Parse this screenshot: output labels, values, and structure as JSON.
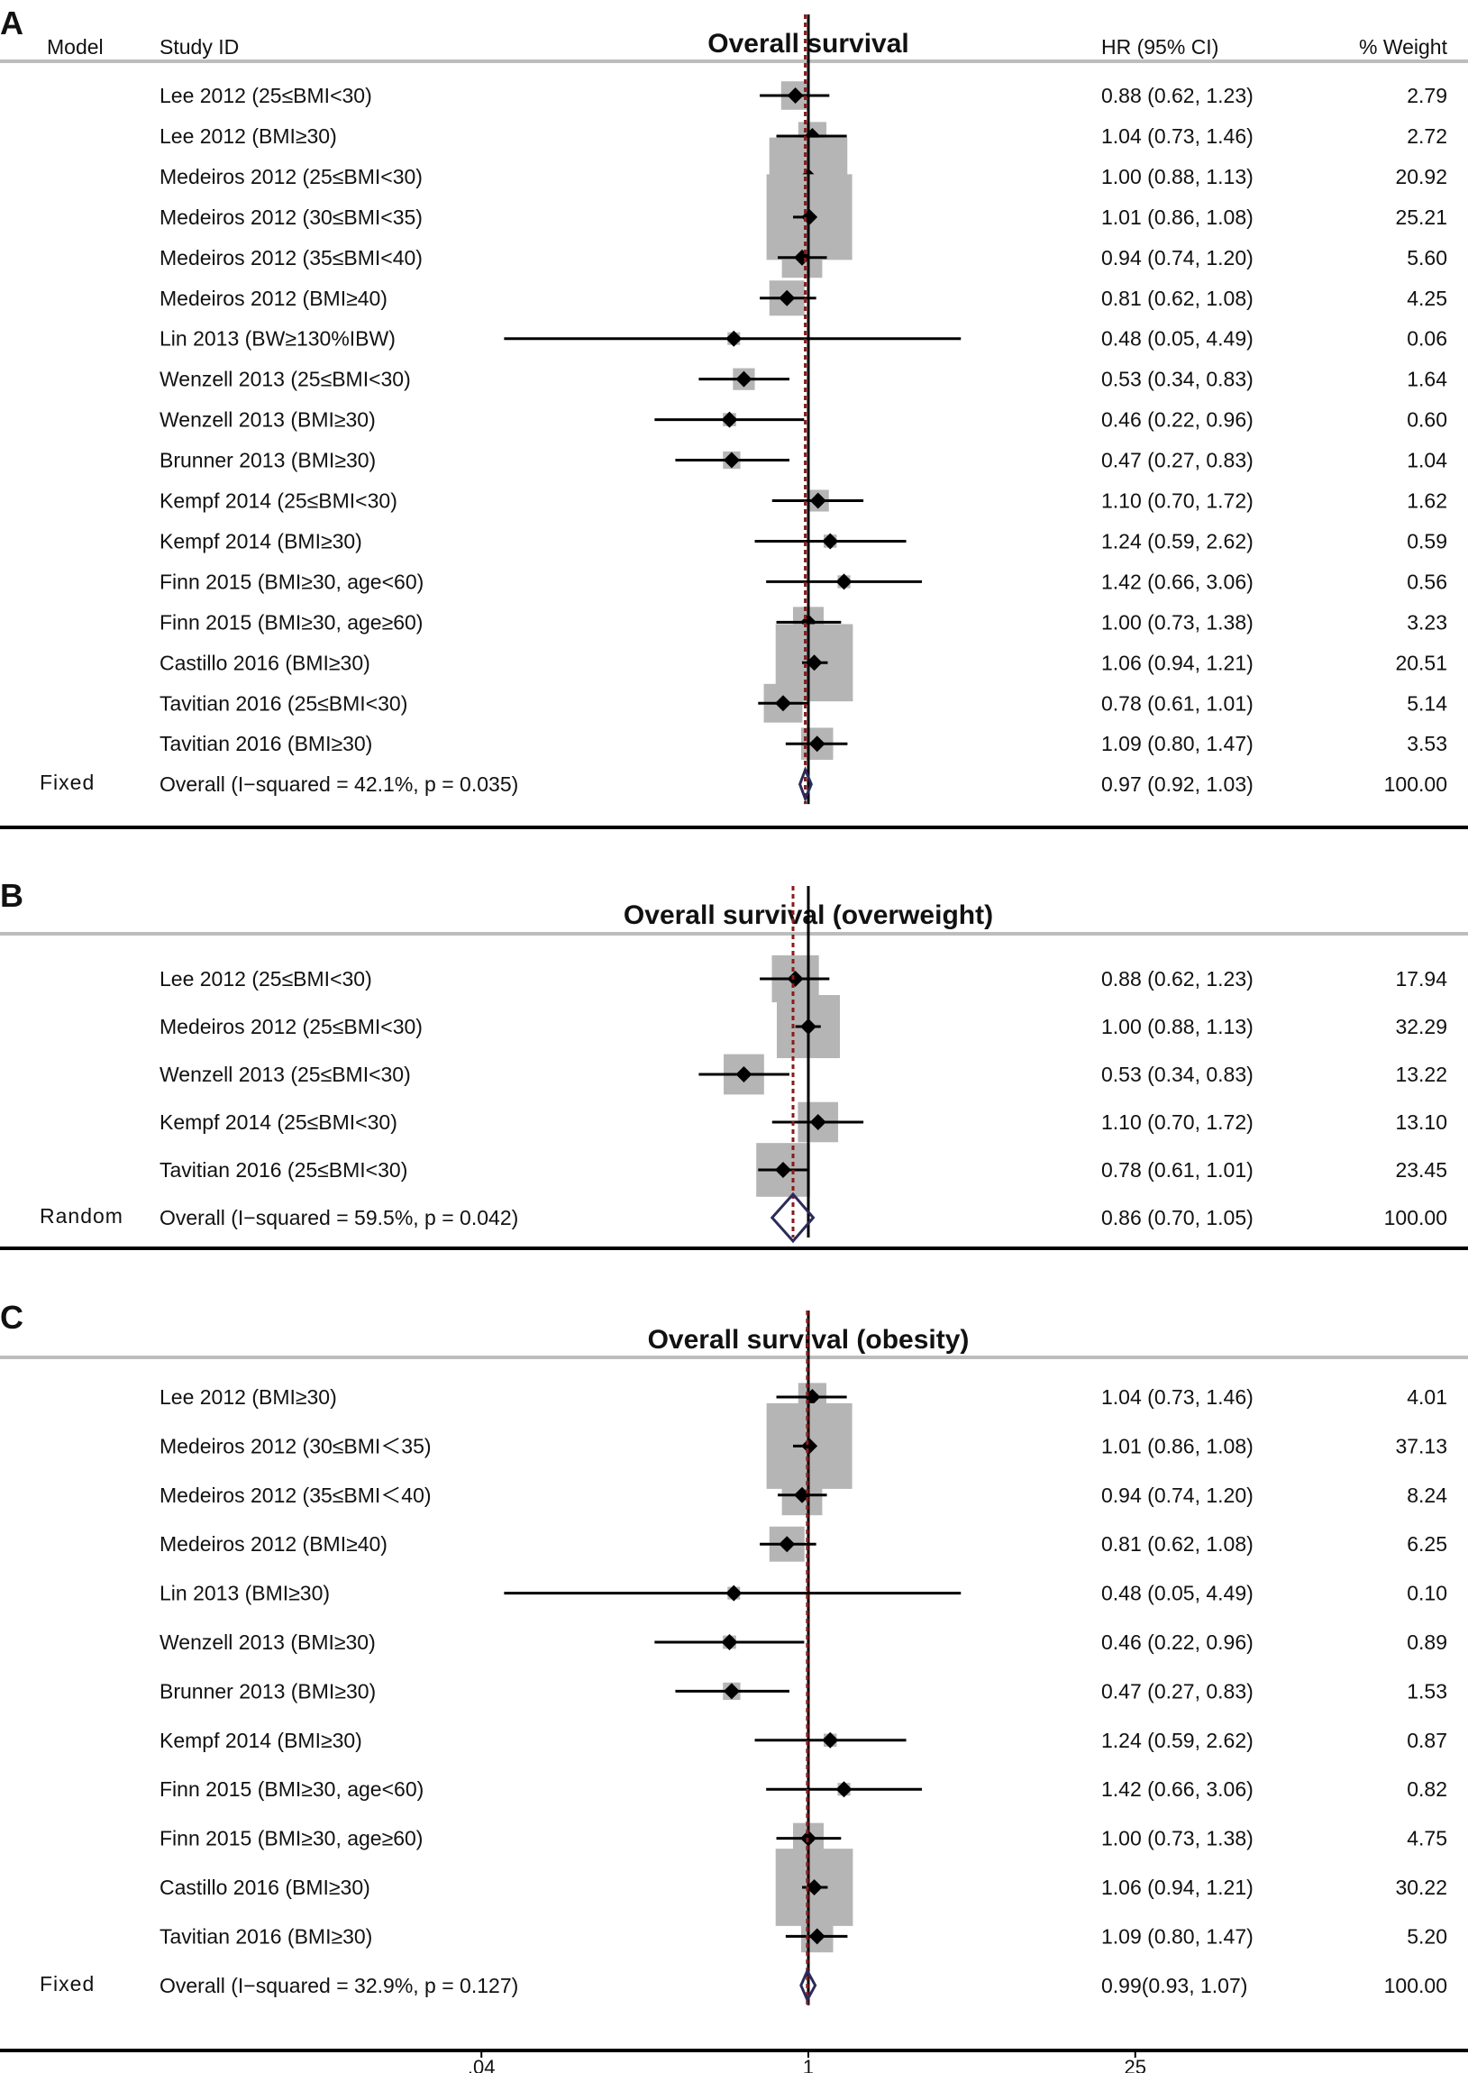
{
  "colors": {
    "box": "#b5b5b5",
    "line": "#000000",
    "ref_line": "#8b1a1a",
    "diamond": "#2b2b5a",
    "rule": "#bdbdbd"
  },
  "headers": {
    "model": "Model",
    "study": "Study ID",
    "hr": "HR (95% CI)",
    "weight": "% Weight"
  },
  "axis": {
    "scale": "log",
    "range": [
      0.02,
      60
    ],
    "ticks": [
      {
        "value": 0.04,
        "label": ".04"
      },
      {
        "value": 1,
        "label": "1"
      },
      {
        "value": 25,
        "label": "25"
      }
    ]
  },
  "chart_data": [
    {
      "type": "forest",
      "letter": "A",
      "title": "Overall survival",
      "model": "Fixed",
      "pooled_line": 0.97,
      "studies": [
        {
          "label": "Lee 2012 (25≤BMI<30)",
          "hr": 0.88,
          "lo": 0.62,
          "hi": 1.23,
          "ci_text": "0.88 (0.62, 1.23)",
          "weight": "2.79"
        },
        {
          "label": "Lee 2012 (BMI≥30)",
          "hr": 1.04,
          "lo": 0.73,
          "hi": 1.46,
          "ci_text": "1.04 (0.73, 1.46)",
          "weight": "2.72"
        },
        {
          "label": "Medeiros 2012 (25≤BMI<30)",
          "hr": 1.0,
          "lo": 0.88,
          "hi": 1.13,
          "ci_text": "1.00 (0.88, 1.13)",
          "weight": "20.92"
        },
        {
          "label": "Medeiros 2012 (30≤BMI<35)",
          "hr": 1.01,
          "lo": 0.86,
          "hi": 1.08,
          "ci_text": "1.01 (0.86, 1.08)",
          "weight": "25.21"
        },
        {
          "label": "Medeiros 2012 (35≤BMI<40)",
          "hr": 0.94,
          "lo": 0.74,
          "hi": 1.2,
          "ci_text": "0.94 (0.74, 1.20)",
          "weight": "5.60"
        },
        {
          "label": "Medeiros 2012 (BMI≥40)",
          "hr": 0.81,
          "lo": 0.62,
          "hi": 1.08,
          "ci_text": "0.81 (0.62, 1.08)",
          "weight": "4.25"
        },
        {
          "label": "Lin 2013 (BW≥130%IBW)",
          "hr": 0.48,
          "lo": 0.05,
          "hi": 4.49,
          "ci_text": "0.48 (0.05, 4.49)",
          "weight": "0.06"
        },
        {
          "label": "Wenzell 2013 (25≤BMI<30)",
          "hr": 0.53,
          "lo": 0.34,
          "hi": 0.83,
          "ci_text": "0.53 (0.34, 0.83)",
          "weight": "1.64"
        },
        {
          "label": "Wenzell 2013 (BMI≥30)",
          "hr": 0.46,
          "lo": 0.22,
          "hi": 0.96,
          "ci_text": "0.46 (0.22, 0.96)",
          "weight": "0.60"
        },
        {
          "label": "Brunner 2013 (BMI≥30)",
          "hr": 0.47,
          "lo": 0.27,
          "hi": 0.83,
          "ci_text": "0.47 (0.27, 0.83)",
          "weight": "1.04"
        },
        {
          "label": "Kempf 2014 (25≤BMI<30)",
          "hr": 1.1,
          "lo": 0.7,
          "hi": 1.72,
          "ci_text": "1.10 (0.70, 1.72)",
          "weight": "1.62"
        },
        {
          "label": "Kempf 2014 (BMI≥30)",
          "hr": 1.24,
          "lo": 0.59,
          "hi": 2.62,
          "ci_text": "1.24 (0.59, 2.62)",
          "weight": "0.59"
        },
        {
          "label": "Finn 2015 (BMI≥30, age<60)",
          "hr": 1.42,
          "lo": 0.66,
          "hi": 3.06,
          "ci_text": "1.42 (0.66, 3.06)",
          "weight": "0.56"
        },
        {
          "label": "Finn 2015 (BMI≥30, age≥60)",
          "hr": 1.0,
          "lo": 0.73,
          "hi": 1.38,
          "ci_text": "1.00 (0.73, 1.38)",
          "weight": "3.23"
        },
        {
          "label": "Castillo 2016 (BMI≥30)",
          "hr": 1.06,
          "lo": 0.94,
          "hi": 1.21,
          "ci_text": "1.06 (0.94, 1.21)",
          "weight": "20.51"
        },
        {
          "label": "Tavitian 2016 (25≤BMI<30)",
          "hr": 0.78,
          "lo": 0.61,
          "hi": 1.01,
          "ci_text": "0.78 (0.61, 1.01)",
          "weight": "5.14"
        },
        {
          "label": "Tavitian 2016 (BMI≥30)",
          "hr": 1.09,
          "lo": 0.8,
          "hi": 1.47,
          "ci_text": "1.09 (0.80, 1.47)",
          "weight": "3.53"
        }
      ],
      "overall": {
        "label": "Overall  (I−squared = 42.1%, p = 0.035)",
        "hr": 0.97,
        "lo": 0.92,
        "hi": 1.03,
        "ci_text": "0.97 (0.92, 1.03)",
        "weight": "100.00"
      }
    },
    {
      "type": "forest",
      "letter": "B",
      "title": "Overall survival (overweight)",
      "model": "Random",
      "pooled_line": 0.86,
      "studies": [
        {
          "label": "Lee 2012 (25≤BMI<30)",
          "hr": 0.88,
          "lo": 0.62,
          "hi": 1.23,
          "ci_text": "0.88 (0.62, 1.23)",
          "weight": "17.94"
        },
        {
          "label": "Medeiros 2012 (25≤BMI<30)",
          "hr": 1.0,
          "lo": 0.88,
          "hi": 1.13,
          "ci_text": "1.00 (0.88, 1.13)",
          "weight": "32.29"
        },
        {
          "label": "Wenzell 2013 (25≤BMI<30)",
          "hr": 0.53,
          "lo": 0.34,
          "hi": 0.83,
          "ci_text": "0.53 (0.34, 0.83)",
          "weight": "13.22"
        },
        {
          "label": "Kempf 2014 (25≤BMI<30)",
          "hr": 1.1,
          "lo": 0.7,
          "hi": 1.72,
          "ci_text": "1.10 (0.70, 1.72)",
          "weight": "13.10"
        },
        {
          "label": "Tavitian 2016 (25≤BMI<30)",
          "hr": 0.78,
          "lo": 0.61,
          "hi": 1.01,
          "ci_text": "0.78 (0.61, 1.01)",
          "weight": "23.45"
        }
      ],
      "overall": {
        "label": "Overall  (I−squared = 59.5%, p = 0.042)",
        "hr": 0.86,
        "lo": 0.7,
        "hi": 1.05,
        "ci_text": "0.86 (0.70, 1.05)",
        "weight": "100.00"
      }
    },
    {
      "type": "forest",
      "letter": "C",
      "title": "Overall survival (obesity)",
      "model": "Fixed",
      "pooled_line": 0.99,
      "studies": [
        {
          "label": "Lee 2012 (BMI≥30)",
          "hr": 1.04,
          "lo": 0.73,
          "hi": 1.46,
          "ci_text": "1.04 (0.73, 1.46)",
          "weight": "4.01"
        },
        {
          "label": "Medeiros 2012 (30≤BMI＜35)",
          "hr": 1.01,
          "lo": 0.86,
          "hi": 1.08,
          "ci_text": "1.01 (0.86, 1.08)",
          "weight": "37.13"
        },
        {
          "label": "Medeiros 2012 (35≤BMI＜40)",
          "hr": 0.94,
          "lo": 0.74,
          "hi": 1.2,
          "ci_text": "0.94 (0.74, 1.20)",
          "weight": "8.24"
        },
        {
          "label": "Medeiros 2012 (BMI≥40)",
          "hr": 0.81,
          "lo": 0.62,
          "hi": 1.08,
          "ci_text": "0.81 (0.62, 1.08)",
          "weight": "6.25"
        },
        {
          "label": "Lin 2013 (BMI≥30)",
          "hr": 0.48,
          "lo": 0.05,
          "hi": 4.49,
          "ci_text": "0.48 (0.05, 4.49)",
          "weight": "0.10"
        },
        {
          "label": "Wenzell 2013 (BMI≥30)",
          "hr": 0.46,
          "lo": 0.22,
          "hi": 0.96,
          "ci_text": "0.46 (0.22, 0.96)",
          "weight": "0.89"
        },
        {
          "label": "Brunner 2013 (BMI≥30)",
          "hr": 0.47,
          "lo": 0.27,
          "hi": 0.83,
          "ci_text": "0.47 (0.27, 0.83)",
          "weight": "1.53"
        },
        {
          "label": "Kempf 2014 (BMI≥30)",
          "hr": 1.24,
          "lo": 0.59,
          "hi": 2.62,
          "ci_text": "1.24 (0.59, 2.62)",
          "weight": "0.87"
        },
        {
          "label": "Finn 2015 (BMI≥30, age<60)",
          "hr": 1.42,
          "lo": 0.66,
          "hi": 3.06,
          "ci_text": "1.42 (0.66, 3.06)",
          "weight": "0.82"
        },
        {
          "label": "Finn 2015 (BMI≥30, age≥60)",
          "hr": 1.0,
          "lo": 0.73,
          "hi": 1.38,
          "ci_text": "1.00 (0.73, 1.38)",
          "weight": "4.75"
        },
        {
          "label": "Castillo 2016 (BMI≥30)",
          "hr": 1.06,
          "lo": 0.94,
          "hi": 1.21,
          "ci_text": "1.06 (0.94, 1.21)",
          "weight": "30.22"
        },
        {
          "label": "Tavitian 2016 (BMI≥30)",
          "hr": 1.09,
          "lo": 0.8,
          "hi": 1.47,
          "ci_text": "1.09 (0.80, 1.47)",
          "weight": "5.20"
        }
      ],
      "overall": {
        "label": "Overall  (I−squared = 32.9%, p = 0.127)",
        "hr": 0.99,
        "lo": 0.93,
        "hi": 1.07,
        "ci_text": "0.99(0.93, 1.07)",
        "weight": "100.00"
      }
    }
  ]
}
